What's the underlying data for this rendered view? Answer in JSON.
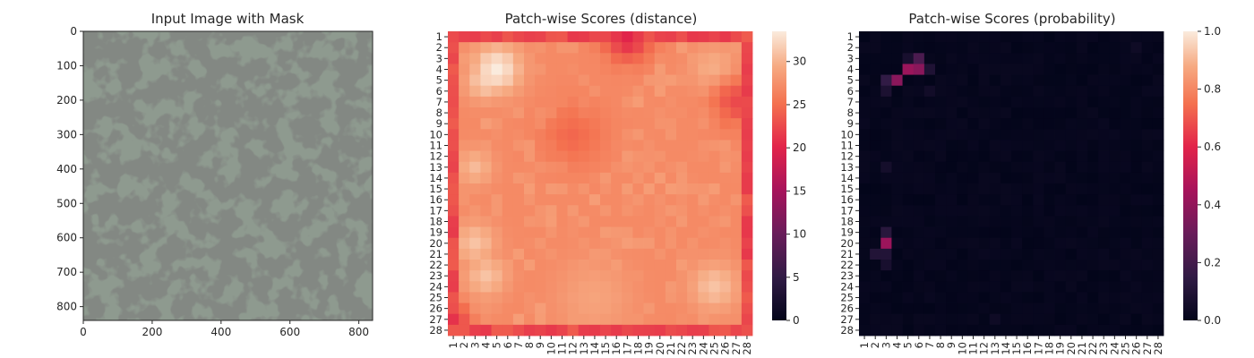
{
  "figure": {
    "background": "#ffffff",
    "text_color": "#262626"
  },
  "chart_data": [
    {
      "id": "input",
      "type": "image",
      "title": "Input Image with Mask",
      "image": {
        "description_colors": {
          "light": "#8e9a8f",
          "dark": "#3a3f3a"
        },
        "extent_px": [
          840,
          840
        ]
      },
      "x_ticks": [
        0,
        200,
        400,
        600,
        800
      ],
      "y_ticks": [
        0,
        100,
        200,
        300,
        400,
        500,
        600,
        700,
        800
      ],
      "xlim": [
        0,
        840
      ],
      "ylim": [
        840,
        0
      ]
    },
    {
      "id": "distance",
      "type": "heatmap",
      "title": "Patch-wise Scores (distance)",
      "colormap": "rocket",
      "grid_size": 28,
      "x_ticklabels": [
        "1",
        "2",
        "3",
        "4",
        "5",
        "6",
        "7",
        "8",
        "9",
        "10",
        "11",
        "12",
        "13",
        "14",
        "15",
        "16",
        "17",
        "18",
        "19",
        "20",
        "21",
        "22",
        "23",
        "24",
        "25",
        "26",
        "27",
        "28"
      ],
      "y_ticklabels": [
        "1",
        "2",
        "3",
        "4",
        "5",
        "6",
        "7",
        "8",
        "9",
        "10",
        "11",
        "12",
        "13",
        "14",
        "15",
        "16",
        "17",
        "18",
        "19",
        "20",
        "21",
        "22",
        "23",
        "24",
        "25",
        "26",
        "27",
        "28"
      ],
      "colorbar": {
        "vmin": 0,
        "vmax": 33.5,
        "ticks": [
          0,
          5,
          10,
          15,
          20,
          25,
          30
        ]
      },
      "values": [],
      "generator": {
        "base": 27,
        "frame_value": 22.5,
        "hotspots": [
          {
            "row": 4,
            "col": 5,
            "value": 33.5,
            "spread": 1.6
          },
          {
            "row": 5,
            "col": 4,
            "value": 32,
            "spread": 1.3
          },
          {
            "row": 20,
            "col": 3,
            "value": 31,
            "spread": 1.4
          },
          {
            "row": 23,
            "col": 4,
            "value": 31,
            "spread": 1.4
          },
          {
            "row": 24,
            "col": 25,
            "value": 31,
            "spread": 1.6
          },
          {
            "row": 4,
            "col": 25,
            "value": 30,
            "spread": 1.5
          },
          {
            "row": 13,
            "col": 3,
            "value": 30.5,
            "spread": 1.2
          },
          {
            "row": 25,
            "col": 14,
            "value": 29,
            "spread": 2.5
          }
        ],
        "coolspots": [
          {
            "row": 1,
            "col": 17,
            "value": 20,
            "spread": 1.5
          },
          {
            "row": 10,
            "col": 12,
            "value": 24.5,
            "spread": 2
          },
          {
            "row": 7,
            "col": 27,
            "value": 22.5,
            "spread": 1.5
          },
          {
            "row": 27,
            "col": 1,
            "value": 21,
            "spread": 1
          }
        ]
      }
    },
    {
      "id": "probability",
      "type": "heatmap",
      "title": "Patch-wise Scores (probability)",
      "colormap": "rocket",
      "grid_size": 28,
      "x_ticklabels": [
        "1",
        "2",
        "3",
        "4",
        "5",
        "6",
        "7",
        "8",
        "9",
        "10",
        "11",
        "12",
        "13",
        "14",
        "15",
        "16",
        "17",
        "18",
        "19",
        "20",
        "21",
        "22",
        "23",
        "24",
        "25",
        "26",
        "27",
        "28"
      ],
      "y_ticklabels": [
        "1",
        "2",
        "3",
        "4",
        "5",
        "6",
        "7",
        "8",
        "9",
        "10",
        "11",
        "12",
        "13",
        "14",
        "15",
        "16",
        "17",
        "18",
        "19",
        "20",
        "21",
        "22",
        "23",
        "24",
        "25",
        "26",
        "27",
        "28"
      ],
      "colorbar": {
        "vmin": 0,
        "vmax": 1,
        "ticks": [
          0.0,
          0.2,
          0.4,
          0.6,
          0.8,
          1.0
        ],
        "tick_labels": [
          "0.0",
          "0.2",
          "0.4",
          "0.6",
          "0.8",
          "1.0"
        ]
      },
      "values": [],
      "generator": {
        "base": 0.0,
        "cells": [
          {
            "row": 4,
            "col": 5,
            "value": 0.42
          },
          {
            "row": 4,
            "col": 6,
            "value": 0.38
          },
          {
            "row": 3,
            "col": 6,
            "value": 0.22
          },
          {
            "row": 5,
            "col": 4,
            "value": 0.38
          },
          {
            "row": 5,
            "col": 3,
            "value": 0.15
          },
          {
            "row": 6,
            "col": 3,
            "value": 0.08
          },
          {
            "row": 3,
            "col": 5,
            "value": 0.07
          },
          {
            "row": 4,
            "col": 7,
            "value": 0.09
          },
          {
            "row": 20,
            "col": 3,
            "value": 0.42
          },
          {
            "row": 19,
            "col": 3,
            "value": 0.12
          },
          {
            "row": 21,
            "col": 2,
            "value": 0.1
          },
          {
            "row": 21,
            "col": 3,
            "value": 0.1
          },
          {
            "row": 22,
            "col": 3,
            "value": 0.07
          },
          {
            "row": 13,
            "col": 3,
            "value": 0.06
          },
          {
            "row": 6,
            "col": 7,
            "value": 0.05
          },
          {
            "row": 2,
            "col": 26,
            "value": 0.04
          },
          {
            "row": 27,
            "col": 13,
            "value": 0.04
          }
        ]
      }
    }
  ]
}
